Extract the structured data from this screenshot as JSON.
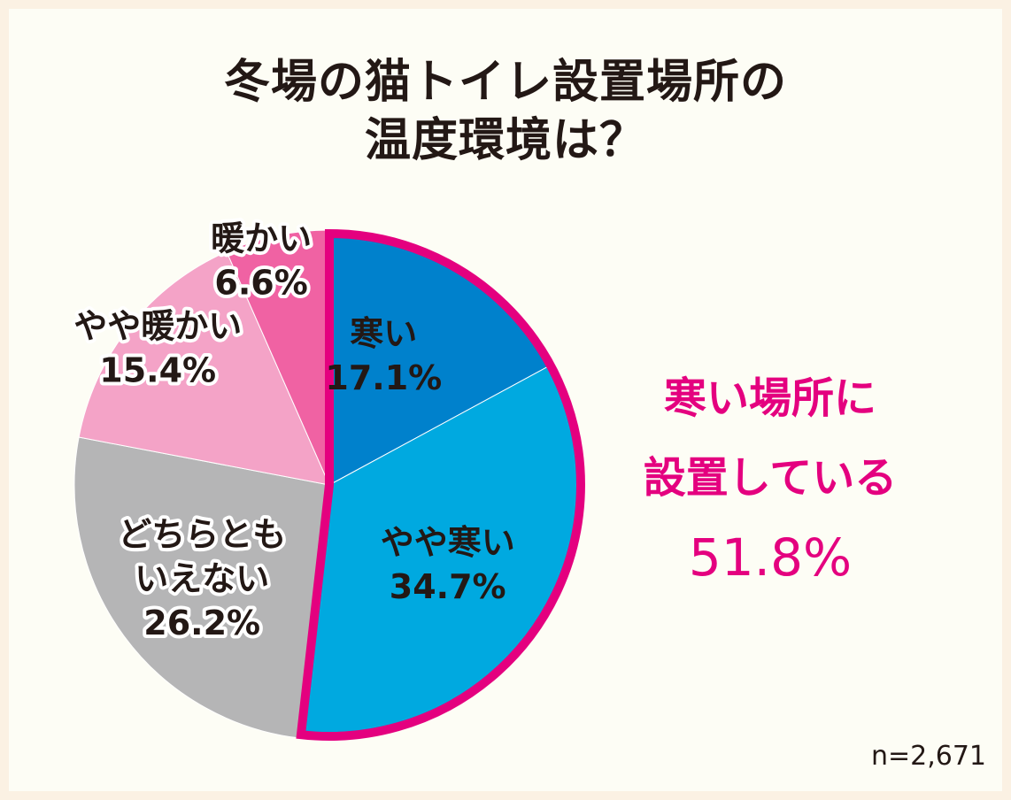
{
  "title": {
    "line1": "冬場の猫トイレ設置場所の",
    "line2": "温度環境は？"
  },
  "callout": {
    "line1": "寒い場所に",
    "line2": "設置している",
    "value": "51.8%"
  },
  "sample_size": "n=2,671",
  "chart_data": {
    "type": "pie",
    "title": "冬場の猫トイレ設置場所の温度環境は？",
    "slices": [
      {
        "label": "寒い",
        "value": 17.1,
        "value_text": "17.1%",
        "color": "#0081cc"
      },
      {
        "label": "やや寒い",
        "value": 34.7,
        "value_text": "34.7%",
        "color": "#00a9e0"
      },
      {
        "label": "どちらとも いえない",
        "value": 26.2,
        "value_text": "26.2%",
        "color": "#b5b5b6"
      },
      {
        "label": "やや暖かい",
        "value": 15.4,
        "value_text": "15.4%",
        "color": "#f4a3c7"
      },
      {
        "label": "暖かい",
        "value": 6.6,
        "value_text": "6.6%",
        "color": "#f062a3"
      }
    ],
    "highlight": {
      "slices": [
        "寒い",
        "やや寒い"
      ],
      "total": 51.8,
      "color": "#e4007f"
    },
    "start": "12 o'clock",
    "direction": "clockwise"
  }
}
